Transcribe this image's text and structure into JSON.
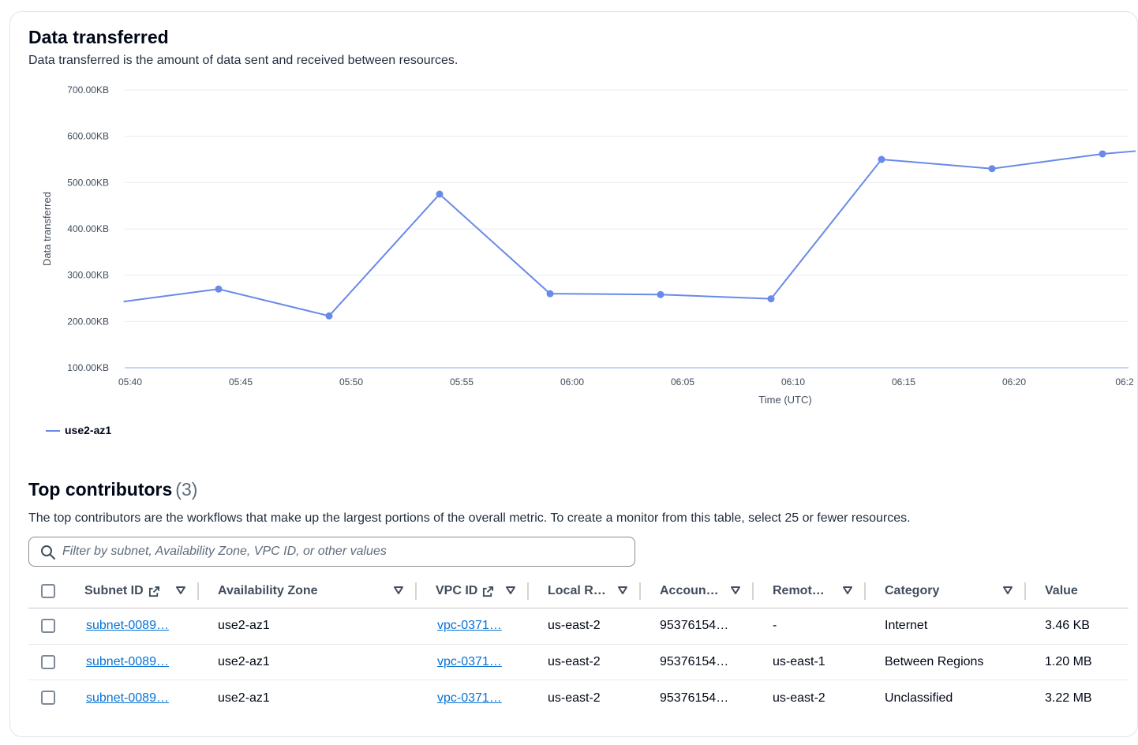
{
  "chart_section": {
    "title": "Data transferred",
    "description": "Data transferred is the amount of data sent and received between resources."
  },
  "chart_data": {
    "type": "line",
    "title": "Data transferred",
    "xlabel": "Time (UTC)",
    "ylabel": "Data transferred",
    "y_ticks": [
      "700.00KB",
      "600.00KB",
      "500.00KB",
      "400.00KB",
      "300.00KB",
      "200.00KB",
      "100.00KB"
    ],
    "x_ticks": [
      "05:40",
      "05:45",
      "05:50",
      "05:55",
      "06:00",
      "06:05",
      "06:10",
      "06:15",
      "06:20",
      "06:2"
    ],
    "ylim_kb": [
      100,
      700
    ],
    "xlim_minutes_from_0540": [
      0,
      45.5
    ],
    "grid": true,
    "legend_placement": "bottom-left",
    "series": [
      {
        "name": "use2-az1",
        "color": "#688ae8",
        "x_minutes_from_0540": [
          -0.3,
          4,
          9,
          14,
          19,
          24,
          29,
          34,
          39,
          44,
          45.5
        ],
        "values_kb": [
          243,
          270,
          212,
          475,
          260,
          258,
          249,
          550,
          530,
          562,
          568
        ],
        "marker_indices": [
          1,
          2,
          3,
          4,
          5,
          6,
          7,
          8,
          9
        ]
      }
    ]
  },
  "contributors": {
    "title": "Top contributors",
    "count": "(3)",
    "description": "The top contributors are the workflows that make up the largest portions of the overall metric. To create a monitor from this table, select 25 or fewer resources.",
    "search_placeholder": "Filter by subnet, Availability Zone, VPC ID, or other values",
    "columns": [
      {
        "label": "Subnet ID"
      },
      {
        "label": "Availability Zone"
      },
      {
        "label": "VPC ID"
      },
      {
        "label": "Local R…"
      },
      {
        "label": "Accoun…"
      },
      {
        "label": "Remot…"
      },
      {
        "label": "Category"
      },
      {
        "label": "Value"
      }
    ],
    "rows": [
      {
        "subnet": "subnet-0089…",
        "az": "use2-az1",
        "vpc": "vpc-0371…",
        "local": "us-east-2",
        "account": "95376154…",
        "remote": "-",
        "category": "Internet",
        "value": "3.46 KB"
      },
      {
        "subnet": "subnet-0089…",
        "az": "use2-az1",
        "vpc": "vpc-0371…",
        "local": "us-east-2",
        "account": "95376154…",
        "remote": "us-east-1",
        "category": "Between Regions",
        "value": "1.20 MB"
      },
      {
        "subnet": "subnet-0089…",
        "az": "use2-az1",
        "vpc": "vpc-0371…",
        "local": "us-east-2",
        "account": "95376154…",
        "remote": "us-east-2",
        "category": "Unclassified",
        "value": "3.22 MB"
      }
    ]
  },
  "colors": {
    "accent": "#688ae8",
    "link": "#0972d3"
  }
}
